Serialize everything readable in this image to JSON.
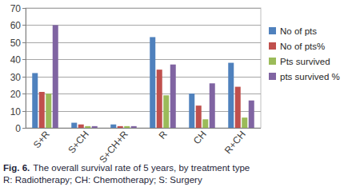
{
  "chart_data": {
    "type": "bar",
    "caption_label": "Fig. 6.",
    "caption": "The overall survival rate of 5 years, by treatment type",
    "caption_note": "R: Radiotherapy; CH: Chemotherapy; S: Surgery",
    "categories": [
      "S+R",
      "S+CH",
      "S+CH+R",
      "R",
      "CH",
      "R+CH"
    ],
    "series": [
      {
        "name": "No of pts",
        "color": "#4f81bd",
        "values": [
          32,
          3,
          2,
          53,
          20,
          38
        ]
      },
      {
        "name": "No of pts%",
        "color": "#c0504d",
        "values": [
          21,
          2,
          1,
          34,
          13,
          24
        ]
      },
      {
        "name": "Pts survived",
        "color": "#9bbb59",
        "values": [
          20,
          1,
          1,
          19,
          5,
          6
        ]
      },
      {
        "name": "pts survived %",
        "color": "#8064a2",
        "values": [
          60,
          1,
          1,
          37,
          26,
          16
        ]
      }
    ],
    "ylim": [
      0,
      70
    ],
    "yticks": [
      0,
      10,
      20,
      30,
      40,
      50,
      60,
      70
    ],
    "grid": true,
    "legend": "right"
  }
}
